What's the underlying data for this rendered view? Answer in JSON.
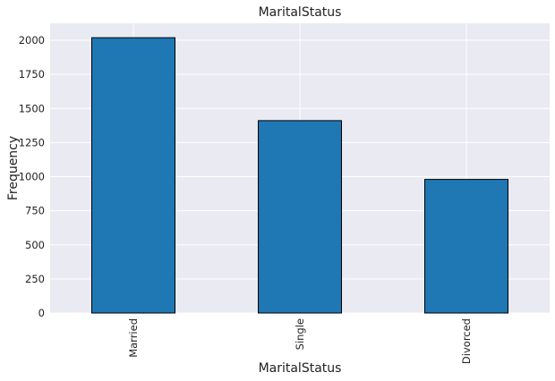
{
  "chart_data": {
    "type": "bar",
    "title": "MaritalStatus",
    "xlabel": "MaritalStatus",
    "ylabel": "Frequency",
    "categories": [
      "Married",
      "Single",
      "Divorced"
    ],
    "values": [
      2019,
      1411,
      980
    ],
    "ylim": [
      0,
      2125
    ],
    "yticks": [
      0,
      250,
      500,
      750,
      1000,
      1250,
      1500,
      1750,
      2000
    ],
    "grid": true,
    "colors": {
      "bar": "#1f77b4",
      "bar_edge": "#000000",
      "plot_background": "#eaeaf2",
      "grid": "#ffffff"
    }
  }
}
